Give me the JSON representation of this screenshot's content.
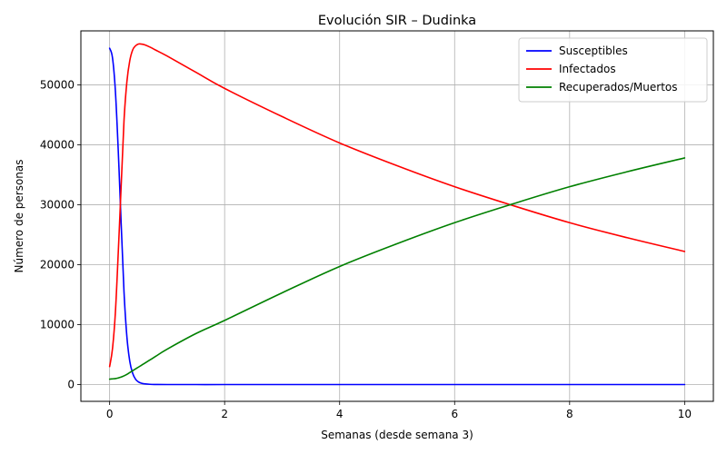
{
  "chart_data": {
    "type": "line",
    "title": "Evolución SIR – Dudinka",
    "xlabel": "Semanas (desde semana 3)",
    "ylabel": "Número de personas",
    "xlim": [
      -0.5,
      10.5
    ],
    "ylim": [
      -2800,
      59000
    ],
    "x_ticks": [
      0,
      2,
      4,
      6,
      8,
      10
    ],
    "y_ticks": [
      0,
      10000,
      20000,
      30000,
      40000,
      50000
    ],
    "grid": true,
    "legend_position": "top-right",
    "series": [
      {
        "name": "Susceptibles",
        "color": "#0000ff",
        "x": [
          0,
          0.05,
          0.1,
          0.15,
          0.2,
          0.25,
          0.3,
          0.35,
          0.4,
          0.45,
          0.5,
          0.55,
          0.6,
          0.7,
          0.8,
          1,
          1.5,
          2,
          3,
          4,
          5,
          6,
          7,
          8,
          9,
          10
        ],
        "y": [
          56100,
          54500,
          49000,
          39000,
          27000,
          15500,
          8000,
          3900,
          1900,
          900,
          450,
          230,
          120,
          40,
          15,
          3,
          0,
          0,
          0,
          0,
          0,
          0,
          0,
          0,
          0,
          0
        ]
      },
      {
        "name": "Infectados",
        "color": "#ff0000",
        "x": [
          0,
          0.05,
          0.1,
          0.15,
          0.2,
          0.25,
          0.3,
          0.35,
          0.4,
          0.45,
          0.5,
          0.55,
          0.6,
          0.7,
          0.8,
          1,
          1.5,
          2,
          3,
          4,
          5,
          6,
          7,
          8,
          9,
          10
        ],
        "y": [
          3000,
          6000,
          12000,
          22000,
          33000,
          44000,
          50500,
          54000,
          55800,
          56500,
          56800,
          56800,
          56700,
          56300,
          55800,
          54800,
          52100,
          49400,
          44700,
          40300,
          36500,
          33000,
          29900,
          27000,
          24500,
          22200
        ]
      },
      {
        "name": "Recuperados/Muertos",
        "color": "#008000",
        "x": [
          0,
          0.05,
          0.1,
          0.15,
          0.2,
          0.25,
          0.3,
          0.35,
          0.4,
          0.45,
          0.5,
          0.55,
          0.6,
          0.7,
          0.8,
          1,
          1.5,
          2,
          3,
          4,
          5,
          6,
          7,
          8,
          9,
          10
        ],
        "y": [
          900,
          950,
          1000,
          1100,
          1250,
          1450,
          1700,
          2000,
          2300,
          2600,
          2900,
          3200,
          3500,
          4100,
          4700,
          5900,
          8500,
          10700,
          15300,
          19700,
          23500,
          27000,
          30100,
          33000,
          35500,
          37800
        ]
      }
    ]
  }
}
